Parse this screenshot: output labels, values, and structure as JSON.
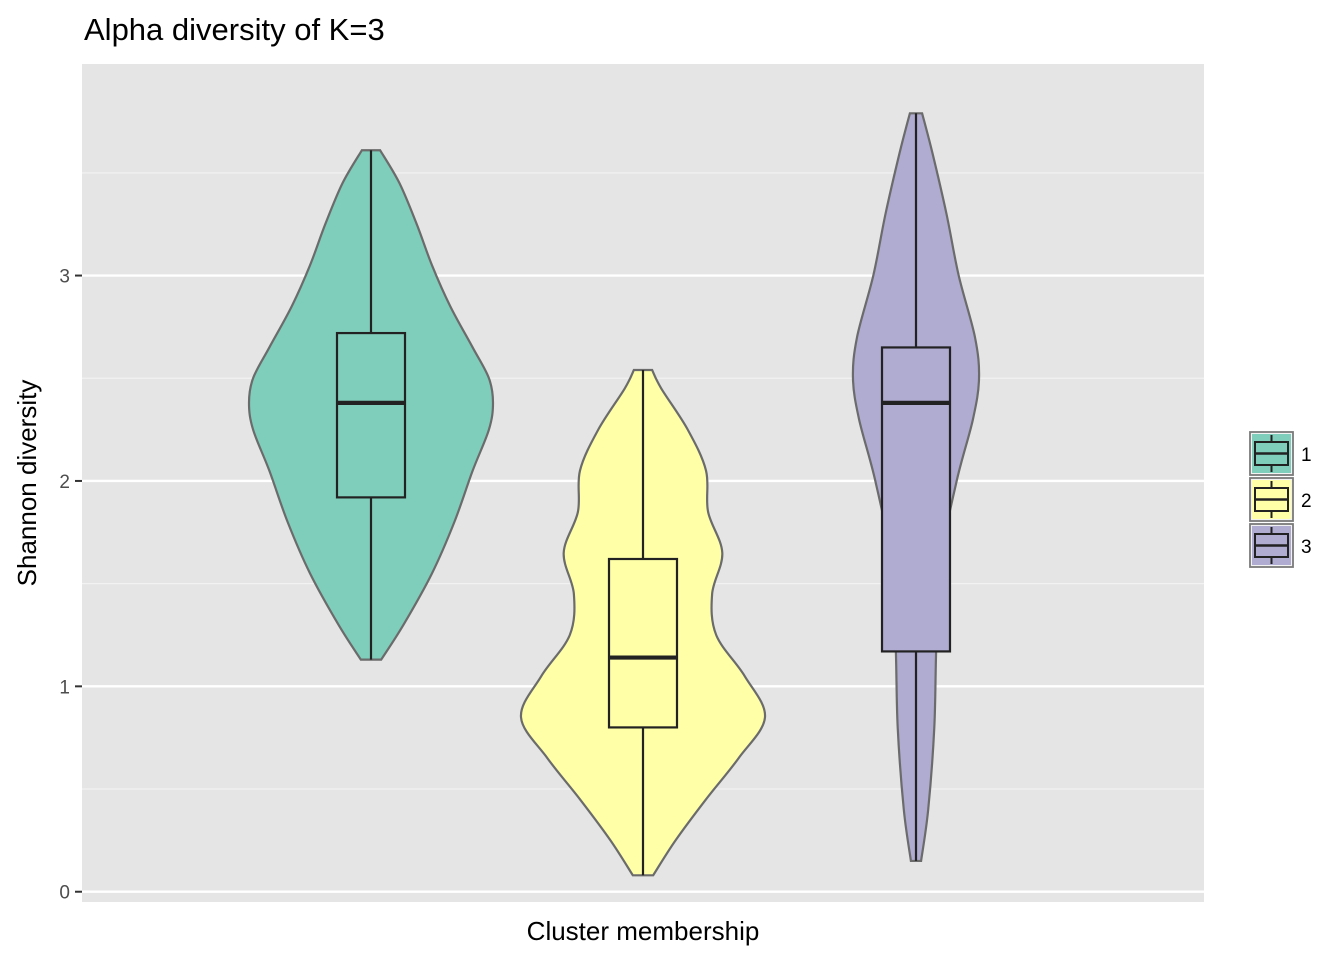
{
  "chart_data": {
    "type": "violin",
    "title": "Alpha diversity of K=3",
    "xlabel": "Cluster membership",
    "ylabel": "Shannon diversity",
    "ylim": [
      -0.05,
      4.03
    ],
    "yticks": [
      0,
      1,
      2,
      3
    ],
    "ytick_labels": [
      "0",
      "1",
      "2",
      "3"
    ],
    "grid": true,
    "legend_position": "right",
    "series": [
      {
        "name": "1",
        "color": "#7fcdbb",
        "min": 1.13,
        "q1": 1.92,
        "median": 2.38,
        "q3": 2.72,
        "max": 3.61,
        "density": [
          [
            1.13,
            0.1
          ],
          [
            1.3,
            0.32
          ],
          [
            1.55,
            0.6
          ],
          [
            1.8,
            0.82
          ],
          [
            2.05,
            1.0
          ],
          [
            2.25,
            1.16
          ],
          [
            2.38,
            1.2
          ],
          [
            2.5,
            1.16
          ],
          [
            2.65,
            1.0
          ],
          [
            2.85,
            0.78
          ],
          [
            3.05,
            0.6
          ],
          [
            3.25,
            0.45
          ],
          [
            3.45,
            0.28
          ],
          [
            3.61,
            0.09
          ]
        ]
      },
      {
        "name": "2",
        "color": "#ffffa8",
        "min": 0.08,
        "q1": 0.8,
        "median": 1.14,
        "q3": 1.62,
        "max": 2.54,
        "density": [
          [
            0.08,
            0.1
          ],
          [
            0.25,
            0.32
          ],
          [
            0.45,
            0.62
          ],
          [
            0.65,
            0.94
          ],
          [
            0.85,
            1.2
          ],
          [
            1.05,
            1.0
          ],
          [
            1.25,
            0.72
          ],
          [
            1.45,
            0.68
          ],
          [
            1.65,
            0.78
          ],
          [
            1.85,
            0.64
          ],
          [
            2.05,
            0.62
          ],
          [
            2.25,
            0.44
          ],
          [
            2.45,
            0.18
          ],
          [
            2.54,
            0.09
          ]
        ]
      },
      {
        "name": "3",
        "color": "#afabd1",
        "min": 0.15,
        "q1": 1.17,
        "median": 2.38,
        "q3": 2.65,
        "max": 3.79,
        "density": [
          [
            0.15,
            0.05
          ],
          [
            0.4,
            0.12
          ],
          [
            0.8,
            0.18
          ],
          [
            1.2,
            0.2
          ],
          [
            1.6,
            0.24
          ],
          [
            2.0,
            0.4
          ],
          [
            2.3,
            0.56
          ],
          [
            2.5,
            0.62
          ],
          [
            2.7,
            0.58
          ],
          [
            3.0,
            0.42
          ],
          [
            3.3,
            0.3
          ],
          [
            3.6,
            0.16
          ],
          [
            3.79,
            0.06
          ]
        ]
      }
    ]
  }
}
